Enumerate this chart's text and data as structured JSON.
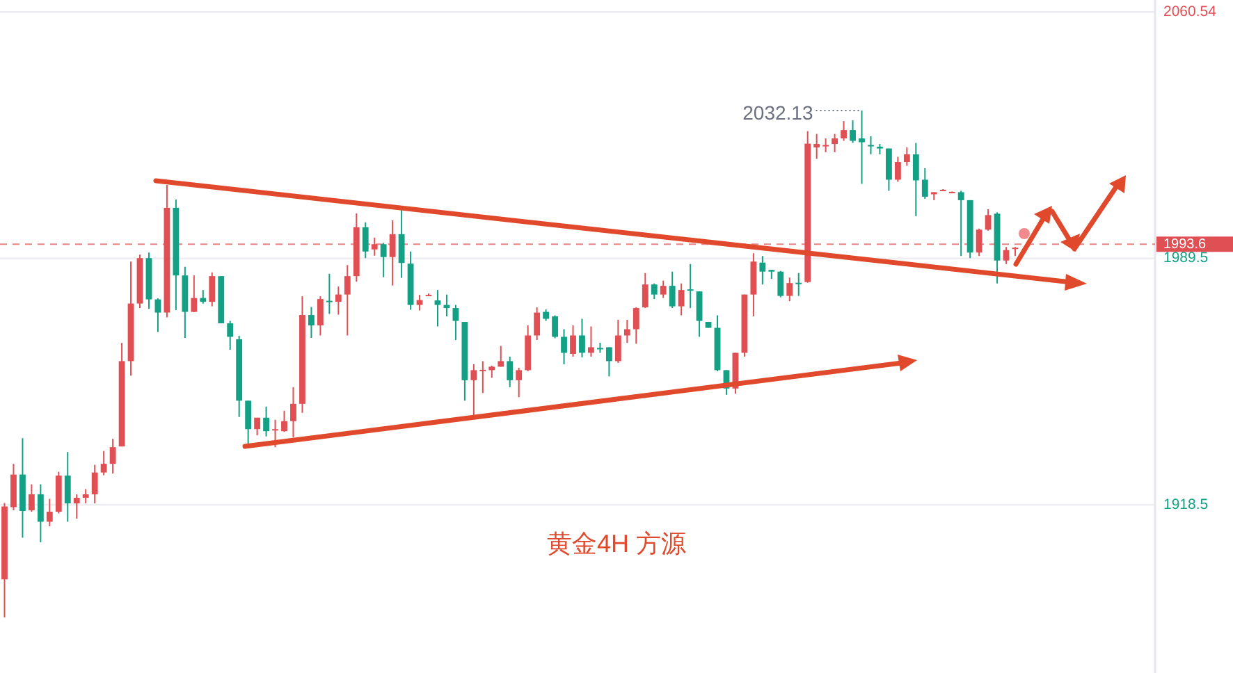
{
  "chart_data": {
    "type": "candlestick",
    "categories": [
      null,
      null,
      null,
      null,
      null,
      null,
      null,
      null,
      null,
      null,
      null,
      null,
      null,
      null,
      null,
      null,
      null,
      null,
      null,
      null,
      null,
      null,
      null,
      null,
      null,
      null,
      null,
      null,
      null,
      null,
      null,
      null,
      null,
      null,
      null,
      null,
      null,
      null,
      null,
      null,
      null,
      null,
      null,
      null,
      null,
      null,
      null,
      null,
      null,
      null,
      null,
      null,
      null,
      null,
      null,
      null,
      null,
      null,
      null,
      null,
      null,
      null,
      null,
      null,
      null,
      null,
      null,
      null,
      null,
      null,
      null,
      null,
      null,
      null,
      null,
      null,
      null,
      null,
      null,
      null,
      null,
      null,
      null,
      null,
      null,
      null,
      null,
      null,
      null,
      null,
      null,
      null,
      null,
      null,
      null,
      null,
      null,
      null,
      null,
      null,
      null,
      null,
      null,
      null,
      null,
      null,
      null,
      null,
      null,
      null,
      null,
      null,
      null,
      null,
      null,
      null,
      null,
      null,
      null,
      null,
      null,
      null,
      null,
      null,
      null,
      null,
      null,
      null
    ],
    "ohlc": [
      [
        1897,
        1919,
        1886,
        1918
      ],
      [
        1917.8,
        1930.3,
        1916.9,
        1927.2
      ],
      [
        1927.2,
        1937.7,
        1909.0,
        1916.7
      ],
      [
        1916.9,
        1924.4,
        1916.5,
        1921.5
      ],
      [
        1921.5,
        1924.4,
        1907.7,
        1913.6
      ],
      [
        1913.6,
        1920.2,
        1912.3,
        1916.5
      ],
      [
        1916.5,
        1928.0,
        1916.0,
        1926.9
      ],
      [
        1926.9,
        1933.7,
        1913.6,
        1918.9
      ],
      [
        1918.9,
        1921.5,
        1914.5,
        1920.5
      ],
      [
        1920.5,
        1923.0,
        1918.9,
        1921.5
      ],
      [
        1921.5,
        1930.0,
        1918.9,
        1927.8
      ],
      [
        1927.8,
        1934.0,
        1927.0,
        1930.3
      ],
      [
        1930.3,
        1937.5,
        1927.5,
        1935.1
      ],
      [
        1935.3,
        1965.2,
        1935.3,
        1959.9
      ],
      [
        1959.9,
        1988.6,
        1955.7,
        1976.5
      ],
      [
        1976.5,
        1990.6,
        1975.2,
        1989.6
      ],
      [
        1989.6,
        1991.2,
        1975.0,
        1977.7
      ],
      [
        1977.7,
        1978.0,
        1968.3,
        1973.9
      ],
      [
        1973.9,
        2010.7,
        1972.5,
        2004.1
      ],
      [
        2004.1,
        2006.5,
        1974.6,
        1984.6
      ],
      [
        1984.6,
        1987.1,
        1966.6,
        1974.1
      ],
      [
        1974.1,
        1984.6,
        1974.0,
        1978.1
      ],
      [
        1978.1,
        1980.4,
        1976.5,
        1977.0
      ],
      [
        1977.0,
        1985.5,
        1975.7,
        1984.4
      ],
      [
        1984.4,
        1984.4,
        1970.8,
        1970.8
      ],
      [
        1970.8,
        1971.5,
        1963.2,
        1966.9
      ],
      [
        1966.2,
        1967.2,
        1943.8,
        1948.5
      ],
      [
        1948.5,
        1948.5,
        1935.1,
        1940.3
      ],
      [
        1940.3,
        1943.6,
        1938.5,
        1943.6
      ],
      [
        1943.6,
        1946.8,
        1938.2,
        1939.7
      ],
      [
        1940.0,
        1943.0,
        1935.1,
        1940.3
      ],
      [
        1939.7,
        1945.6,
        1939.5,
        1942.6
      ],
      [
        1942.6,
        1952.4,
        1937.9,
        1947.6
      ],
      [
        1947.6,
        1978.6,
        1945.0,
        1973.2
      ],
      [
        1973.2,
        1975.5,
        1966.6,
        1970.2
      ],
      [
        1970.2,
        1978.6,
        1967.3,
        1977.8
      ],
      [
        1977.3,
        1985.1,
        1973.5,
        1977.0
      ],
      [
        1977.0,
        1981.4,
        1973.3,
        1979.1
      ],
      [
        1979.1,
        1987.6,
        1967.3,
        1984.4
      ],
      [
        1984.4,
        2002.5,
        1982.8,
        1998.5
      ],
      [
        1998.5,
        1999.9,
        1989.6,
        1991.5
      ],
      [
        1992.1,
        1995.5,
        1990.3,
        1993.6
      ],
      [
        1993.6,
        1994.0,
        1984.1,
        1989.9
      ],
      [
        1989.9,
        2000.5,
        1981.7,
        1996.5
      ],
      [
        1996.5,
        2003.6,
        1983.9,
        1988.2
      ],
      [
        1988.0,
        1991.5,
        1974.7,
        1976.1
      ],
      [
        1976.1,
        1979.0,
        1974.5,
        1977.5
      ],
      [
        1978.8,
        1979.4,
        1978.6,
        1979.0
      ],
      [
        1977.4,
        1980.4,
        1969.9,
        1976.1
      ],
      [
        1976.1,
        1979.1,
        1972.8,
        1975.2
      ],
      [
        1975.2,
        1976.1,
        1966.0,
        1971.5
      ],
      [
        1971.2,
        1971.2,
        1948.5,
        1954.4
      ],
      [
        1954.4,
        1959.0,
        1944.1,
        1957.3
      ],
      [
        1957.2,
        1959.9,
        1950.7,
        1957.4
      ],
      [
        1957.3,
        1958.6,
        1955.1,
        1958.3
      ],
      [
        1958.3,
        1964.3,
        1958.3,
        1959.9
      ],
      [
        1959.9,
        1961.2,
        1952.4,
        1954.4
      ],
      [
        1954.4,
        1958.0,
        1949.5,
        1957.3
      ],
      [
        1957.3,
        1970.2,
        1957.0,
        1967.3
      ],
      [
        1967.3,
        1975.4,
        1966.0,
        1973.9
      ],
      [
        1974.1,
        1974.8,
        1971.5,
        1972.1
      ],
      [
        1972.8,
        1973.1,
        1966.5,
        1966.9
      ],
      [
        1966.9,
        1969.1,
        1959.0,
        1962.3
      ],
      [
        1962.0,
        1970.2,
        1961.2,
        1967.3
      ],
      [
        1967.3,
        1972.1,
        1961.0,
        1962.3
      ],
      [
        1962.3,
        1969.9,
        1961.2,
        1963.9
      ],
      [
        1963.7,
        1965.2,
        1962.3,
        1963.5
      ],
      [
        1963.9,
        1963.9,
        1955.5,
        1959.9
      ],
      [
        1959.9,
        1971.8,
        1959.4,
        1967.3
      ],
      [
        1967.3,
        1971.8,
        1965.2,
        1969.1
      ],
      [
        1969.1,
        1975.4,
        1964.9,
        1975.2
      ],
      [
        1975.4,
        1985.3,
        1975.2,
        1982.0
      ],
      [
        1982.0,
        1982.3,
        1977.8,
        1979.1
      ],
      [
        1979.1,
        1983.1,
        1978.1,
        1981.6
      ],
      [
        1981.6,
        1985.7,
        1975.2,
        1975.7
      ],
      [
        1975.7,
        1982.3,
        1973.1,
        1980.4
      ],
      [
        1980.6,
        1987.9,
        1975.2,
        1980.4
      ],
      [
        1980.0,
        1980.0,
        1966.9,
        1971.5
      ],
      [
        1971.2,
        1971.2,
        1969.5,
        1969.5
      ],
      [
        1969.5,
        1973.1,
        1957.0,
        1957.3
      ],
      [
        1957.3,
        1957.3,
        1950.2,
        1952.0
      ],
      [
        1952.0,
        1962.3,
        1950.5,
        1962.3
      ],
      [
        1962.3,
        1979.1,
        1961.2,
        1979.1
      ],
      [
        1979.1,
        1991.0,
        1972.8,
        1988.6
      ],
      [
        1988.3,
        1990.2,
        1982.0,
        1985.7
      ],
      [
        1986.2,
        1986.2,
        1983.6,
        1985.7
      ],
      [
        1985.7,
        1985.9,
        1978.3,
        1978.7
      ],
      [
        1978.7,
        1984.0,
        1977.2,
        1982.4
      ],
      [
        1982.5,
        1985.3,
        1978.7,
        1982.3
      ],
      [
        1982.7,
        2026.2,
        1982.5,
        2022.6
      ],
      [
        2021.5,
        2025.4,
        2018.2,
        2022.5
      ],
      [
        2022.0,
        2024.1,
        2020.1,
        2022.2
      ],
      [
        2022.5,
        2025.4,
        2020.1,
        2024.1
      ],
      [
        2024.1,
        2029.1,
        2023.4,
        2026.5
      ],
      [
        2026.5,
        2029.3,
        2022.8,
        2023.4
      ],
      [
        2024.1,
        2032.13,
        2011.0,
        2023.0
      ],
      [
        2022.2,
        2024.7,
        2019.5,
        2022.0
      ],
      [
        2021.7,
        2022.5,
        2019.5,
        2021.2
      ],
      [
        2021.2,
        2021.2,
        2009.0,
        2012.2
      ],
      [
        2012.2,
        2018.8,
        2011.6,
        2017.3
      ],
      [
        2017.3,
        2021.5,
        2016.2,
        2019.5
      ],
      [
        2019.5,
        2022.8,
        2001.7,
        2012.0
      ],
      [
        2012.2,
        2015.5,
        2006.7,
        2007.3
      ],
      [
        2008.0,
        2008.6,
        2006.3,
        2008.6
      ],
      [
        2009.1,
        2009.5,
        2009.0,
        2009.3
      ],
      [
        2008.5,
        2008.8,
        2008.4,
        2008.7
      ],
      [
        2008.6,
        2009.0,
        1990.2,
        2006.3
      ],
      [
        2006.3,
        2006.3,
        1989.6,
        1991.2
      ],
      [
        1991.2,
        1998.1,
        1990.2,
        1997.8
      ],
      [
        1997.8,
        2003.7,
        1997.5,
        2002.0
      ],
      [
        2002.4,
        2002.8,
        1982.3,
        1988.9
      ],
      [
        1988.9,
        1992.8,
        1987.9,
        1991.9
      ],
      [
        1992.4,
        1992.8,
        1990.2,
        1992.6
      ],
      null,
      null,
      null,
      null,
      null,
      null,
      null,
      null,
      null,
      null,
      null,
      null,
      null,
      null,
      null
    ],
    "colors": [
      "#e04f53",
      "#e04f53",
      "#14a085",
      "#e04f53",
      "#14a085",
      "#e04f53",
      "#e04f53",
      "#14a085",
      "#e04f53",
      "#e04f53",
      "#e04f53",
      "#e04f53",
      "#e04f53",
      "#e04f53",
      "#e04f53",
      "#e04f53",
      "#14a085",
      "#14a085",
      "#e04f53",
      "#14a085",
      "#14a085",
      "#e04f53",
      "#14a085",
      "#e04f53",
      "#14a085",
      "#14a085",
      "#14a085",
      "#14a085",
      "#e04f53",
      "#14a085",
      "#e04f53",
      "#e04f53",
      "#e04f53",
      "#e04f53",
      "#14a085",
      "#e04f53",
      "#14a085",
      "#e04f53",
      "#e04f53",
      "#e04f53",
      "#14a085",
      "#e04f53",
      "#14a085",
      "#e04f53",
      "#14a085",
      "#14a085",
      "#e04f53",
      "#e04f53",
      "#14a085",
      "#14a085",
      "#14a085",
      "#14a085",
      "#e04f53",
      "#e04f53",
      "#e04f53",
      "#e04f53",
      "#14a085",
      "#e04f53",
      "#e04f53",
      "#e04f53",
      "#14a085",
      "#14a085",
      "#14a085",
      "#e04f53",
      "#14a085",
      "#e04f53",
      "#14a085",
      "#14a085",
      "#e04f53",
      "#e04f53",
      "#e04f53",
      "#e04f53",
      "#14a085",
      "#e04f53",
      "#14a085",
      "#e04f53",
      "#14a085",
      "#14a085",
      "#14a085",
      "#14a085",
      "#14a085",
      "#e04f53",
      "#e04f53",
      "#e04f53",
      "#14a085",
      "#14a085",
      "#14a085",
      "#e04f53",
      "#14a085",
      "#e04f53",
      "#e04f53",
      "#e04f53",
      "#e04f53",
      "#e04f53",
      "#14a085",
      "#14a085",
      "#14a085",
      "#14a085",
      "#14a085",
      "#e04f53",
      "#e04f53",
      "#14a085",
      "#14a085",
      "#e04f53",
      "#e04f53",
      "#e04f53",
      "#14a085",
      "#14a085",
      "#e04f53",
      "#e04f53",
      "#14a085",
      "#e04f53",
      "#e04f53",
      null,
      null,
      null,
      null,
      null,
      null,
      null,
      null,
      null,
      null,
      null,
      null,
      null,
      null,
      null
    ],
    "ylim": [
      1870,
      2064
    ],
    "yticks": [
      2060.54,
      1989.5,
      1918.5
    ],
    "grid": "y",
    "ref_lines": [
      {
        "axis": "y",
        "value": 1993.6,
        "label": "1993.6",
        "color": "#e04f53",
        "line_style": "dashed"
      }
    ],
    "annotations": [
      "黄金4H  方源",
      "2032.13"
    ]
  }
}
